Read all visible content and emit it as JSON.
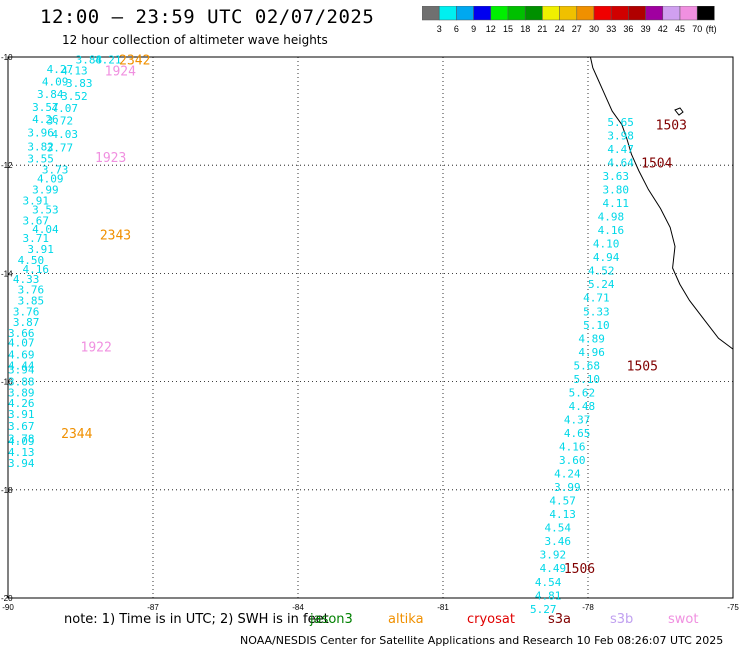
{
  "header": {
    "title": "12:00 – 23:59 UTC 02/07/2025",
    "subtitle": "12 hour collection of altimeter wave heights"
  },
  "colorbar": {
    "unit": "(ft)",
    "ticks": [
      "3",
      "6",
      "9",
      "12",
      "15",
      "18",
      "21",
      "24",
      "27",
      "30",
      "33",
      "36",
      "39",
      "42",
      "45",
      "70"
    ],
    "colors": [
      "#707070",
      "#00f0f0",
      "#00a8f0",
      "#0000f0",
      "#00f000",
      "#00c000",
      "#009000",
      "#f0f000",
      "#f0c000",
      "#f09000",
      "#f00000",
      "#d00000",
      "#b00000",
      "#a000a0",
      "#d0a0f0",
      "#f090e0",
      "#000000"
    ]
  },
  "note": {
    "text": "note: 1) Time is in UTC; 2) SWH is in feet",
    "satellites": [
      {
        "name": "jason3",
        "color": "#008000"
      },
      {
        "name": "altika",
        "color": "#f09000"
      },
      {
        "name": "cryosat",
        "color": "#e00000"
      },
      {
        "name": "s3a",
        "color": "#800000"
      },
      {
        "name": "s3b",
        "color": "#c0a0f0"
      },
      {
        "name": "swot",
        "color": "#f090e0"
      }
    ]
  },
  "footer": "NOAA/NESDIS Center for Satellite Applications and Research    10 Feb 08:26:07 UTC 2025",
  "chart_data": {
    "type": "scatter",
    "title": "12:00 – 23:59 UTC 02/07/2025",
    "xlim": [
      -90,
      -75
    ],
    "ylim": [
      -20,
      -10
    ],
    "xticks": [
      -90,
      -87,
      -84,
      -81,
      -78,
      -75
    ],
    "yticks": [
      -10,
      -12,
      -14,
      -16,
      -18,
      -20
    ],
    "xtick_labels": [
      "-90",
      "-87",
      "-84",
      "-81",
      "-78",
      "-75"
    ],
    "ytick_labels": [
      "-10",
      "-12",
      "-14",
      "-16",
      "-18",
      "-20"
    ],
    "grid": true,
    "wave_color": "#00d8e8",
    "western_track": [
      {
        "lon": -88.6,
        "lat": -10.05,
        "v": "3.88"
      },
      {
        "lon": -88.2,
        "lat": -10.05,
        "v": "4.21"
      },
      {
        "lon": -89.2,
        "lat": -10.22,
        "v": "4.27"
      },
      {
        "lon": -88.9,
        "lat": -10.25,
        "v": "4.13"
      },
      {
        "lon": -89.3,
        "lat": -10.45,
        "v": "4.09"
      },
      {
        "lon": -88.8,
        "lat": -10.48,
        "v": "3.83"
      },
      {
        "lon": -89.4,
        "lat": -10.68,
        "v": "3.84"
      },
      {
        "lon": -88.9,
        "lat": -10.72,
        "v": "3.52"
      },
      {
        "lon": -89.5,
        "lat": -10.92,
        "v": "3.57"
      },
      {
        "lon": -89.1,
        "lat": -10.94,
        "v": "4.07"
      },
      {
        "lon": -89.5,
        "lat": -11.15,
        "v": "4.26"
      },
      {
        "lon": -89.2,
        "lat": -11.17,
        "v": "3.72"
      },
      {
        "lon": -89.6,
        "lat": -11.4,
        "v": "3.96"
      },
      {
        "lon": -89.1,
        "lat": -11.42,
        "v": "4.03"
      },
      {
        "lon": -89.6,
        "lat": -11.65,
        "v": "3.82"
      },
      {
        "lon": -89.2,
        "lat": -11.67,
        "v": "3.77"
      },
      {
        "lon": -89.6,
        "lat": -11.88,
        "v": "3.55"
      },
      {
        "lon": -89.3,
        "lat": -12.08,
        "v": "3.73"
      },
      {
        "lon": -89.4,
        "lat": -12.25,
        "v": "4.09"
      },
      {
        "lon": -89.5,
        "lat": -12.45,
        "v": "3.99"
      },
      {
        "lon": -89.7,
        "lat": -12.65,
        "v": "3.91"
      },
      {
        "lon": -89.5,
        "lat": -12.82,
        "v": "3.53"
      },
      {
        "lon": -89.7,
        "lat": -13.02,
        "v": "3.67"
      },
      {
        "lon": -89.5,
        "lat": -13.18,
        "v": "4.04"
      },
      {
        "lon": -89.7,
        "lat": -13.35,
        "v": "3.71"
      },
      {
        "lon": -89.6,
        "lat": -13.55,
        "v": "3.91"
      },
      {
        "lon": -89.8,
        "lat": -13.75,
        "v": "4.50"
      },
      {
        "lon": -89.7,
        "lat": -13.92,
        "v": "4.16"
      },
      {
        "lon": -89.9,
        "lat": -14.1,
        "v": "4.33"
      },
      {
        "lon": -89.8,
        "lat": -14.3,
        "v": "3.76"
      },
      {
        "lon": -89.8,
        "lat": -14.5,
        "v": "3.85"
      },
      {
        "lon": -89.9,
        "lat": -14.7,
        "v": "3.76"
      },
      {
        "lon": -89.9,
        "lat": -14.9,
        "v": "3.87"
      },
      {
        "lon": -90.0,
        "lat": -15.1,
        "v": "3.66"
      },
      {
        "lon": -90.0,
        "lat": -15.28,
        "v": "4.07"
      },
      {
        "lon": -90.0,
        "lat": -15.5,
        "v": "4.69"
      },
      {
        "lon": -90.0,
        "lat": -15.7,
        "v": "4.44"
      },
      {
        "lon": -90.0,
        "lat": -15.78,
        "v": "3.94"
      },
      {
        "lon": -90.0,
        "lat": -16.0,
        "v": "3.88"
      },
      {
        "lon": -90.0,
        "lat": -16.2,
        "v": "3.89"
      },
      {
        "lon": -90.0,
        "lat": -16.4,
        "v": "4.26"
      },
      {
        "lon": -90.0,
        "lat": -16.6,
        "v": "3.91"
      },
      {
        "lon": -90.0,
        "lat": -16.82,
        "v": "3.67"
      },
      {
        "lon": -90.0,
        "lat": -17.05,
        "v": "3.78"
      },
      {
        "lon": -90.0,
        "lat": -17.1,
        "v": "4.09"
      },
      {
        "lon": -90.0,
        "lat": -17.3,
        "v": "4.13"
      },
      {
        "lon": -90.0,
        "lat": -17.5,
        "v": "3.94"
      }
    ],
    "eastern_track": [
      {
        "lon": -77.6,
        "lat": -11.2,
        "v": "5.65"
      },
      {
        "lon": -77.6,
        "lat": -11.45,
        "v": "3.98"
      },
      {
        "lon": -77.6,
        "lat": -11.7,
        "v": "4.47"
      },
      {
        "lon": -77.6,
        "lat": -11.95,
        "v": "4.64"
      },
      {
        "lon": -77.7,
        "lat": -12.2,
        "v": "3.63"
      },
      {
        "lon": -77.7,
        "lat": -12.45,
        "v": "3.80"
      },
      {
        "lon": -77.7,
        "lat": -12.7,
        "v": "4.11"
      },
      {
        "lon": -77.8,
        "lat": -12.95,
        "v": "4.98"
      },
      {
        "lon": -77.8,
        "lat": -13.2,
        "v": "4.16"
      },
      {
        "lon": -77.9,
        "lat": -13.45,
        "v": "4.10"
      },
      {
        "lon": -77.9,
        "lat": -13.7,
        "v": "4.94"
      },
      {
        "lon": -78.0,
        "lat": -13.95,
        "v": "4.52"
      },
      {
        "lon": -78.0,
        "lat": -14.2,
        "v": "5.24"
      },
      {
        "lon": -78.1,
        "lat": -14.45,
        "v": "4.71"
      },
      {
        "lon": -78.1,
        "lat": -14.7,
        "v": "5.33"
      },
      {
        "lon": -78.1,
        "lat": -14.95,
        "v": "5.10"
      },
      {
        "lon": -78.2,
        "lat": -15.2,
        "v": "4.89"
      },
      {
        "lon": -78.2,
        "lat": -15.45,
        "v": "4.96"
      },
      {
        "lon": -78.3,
        "lat": -15.7,
        "v": "5.68"
      },
      {
        "lon": -78.3,
        "lat": -15.95,
        "v": "5.10"
      },
      {
        "lon": -78.4,
        "lat": -16.2,
        "v": "5.62"
      },
      {
        "lon": -78.4,
        "lat": -16.45,
        "v": "4.48"
      },
      {
        "lon": -78.5,
        "lat": -16.7,
        "v": "4.37"
      },
      {
        "lon": -78.5,
        "lat": -16.95,
        "v": "4.65"
      },
      {
        "lon": -78.6,
        "lat": -17.2,
        "v": "4.16"
      },
      {
        "lon": -78.6,
        "lat": -17.45,
        "v": "3.60"
      },
      {
        "lon": -78.7,
        "lat": -17.7,
        "v": "4.24"
      },
      {
        "lon": -78.7,
        "lat": -17.95,
        "v": "3.99"
      },
      {
        "lon": -78.8,
        "lat": -18.2,
        "v": "4.57"
      },
      {
        "lon": -78.8,
        "lat": -18.45,
        "v": "4.13"
      },
      {
        "lon": -78.9,
        "lat": -18.7,
        "v": "4.54"
      },
      {
        "lon": -78.9,
        "lat": -18.95,
        "v": "3.46"
      },
      {
        "lon": -79.0,
        "lat": -19.2,
        "v": "3.92"
      },
      {
        "lon": -79.0,
        "lat": -19.45,
        "v": "4.49"
      },
      {
        "lon": -79.1,
        "lat": -19.7,
        "v": "4.54"
      },
      {
        "lon": -79.1,
        "lat": -19.95,
        "v": "4.81"
      },
      {
        "lon": -79.2,
        "lat": -20.2,
        "v": "5.27"
      }
    ],
    "time_labels": [
      {
        "lon": -87.7,
        "lat": -10.05,
        "v": "2342",
        "color": "#f09000"
      },
      {
        "lon": -88.0,
        "lat": -10.25,
        "v": "1924",
        "color": "#f090e0"
      },
      {
        "lon": -88.2,
        "lat": -11.85,
        "v": "1923",
        "color": "#f090e0"
      },
      {
        "lon": -88.1,
        "lat": -13.28,
        "v": "2343",
        "color": "#f09000"
      },
      {
        "lon": -88.5,
        "lat": -15.35,
        "v": "1922",
        "color": "#f090e0"
      },
      {
        "lon": -88.9,
        "lat": -16.95,
        "v": "2344",
        "color": "#f09000"
      },
      {
        "lon": -76.6,
        "lat": -11.25,
        "v": "1503",
        "color": "#800000"
      },
      {
        "lon": -76.9,
        "lat": -11.95,
        "v": "1504",
        "color": "#800000"
      },
      {
        "lon": -77.2,
        "lat": -15.7,
        "v": "1505",
        "color": "#800000"
      },
      {
        "lon": -78.5,
        "lat": -19.45,
        "v": "1506",
        "color": "#800000"
      }
    ],
    "coastline": [
      [
        -77.95,
        -10.0
      ],
      [
        -77.9,
        -10.2
      ],
      [
        -77.8,
        -10.4
      ],
      [
        -77.7,
        -10.6
      ],
      [
        -77.6,
        -10.8
      ],
      [
        -77.5,
        -11.0
      ],
      [
        -77.3,
        -11.25
      ],
      [
        -77.2,
        -11.5
      ],
      [
        -77.1,
        -11.8
      ],
      [
        -76.95,
        -12.1
      ],
      [
        -76.75,
        -12.45
      ],
      [
        -76.5,
        -12.8
      ],
      [
        -76.3,
        -13.15
      ],
      [
        -76.2,
        -13.5
      ],
      [
        -76.25,
        -13.9
      ],
      [
        -76.1,
        -14.2
      ],
      [
        -75.9,
        -14.5
      ],
      [
        -75.6,
        -14.85
      ],
      [
        -75.3,
        -15.2
      ],
      [
        -75.0,
        -15.4
      ]
    ]
  }
}
